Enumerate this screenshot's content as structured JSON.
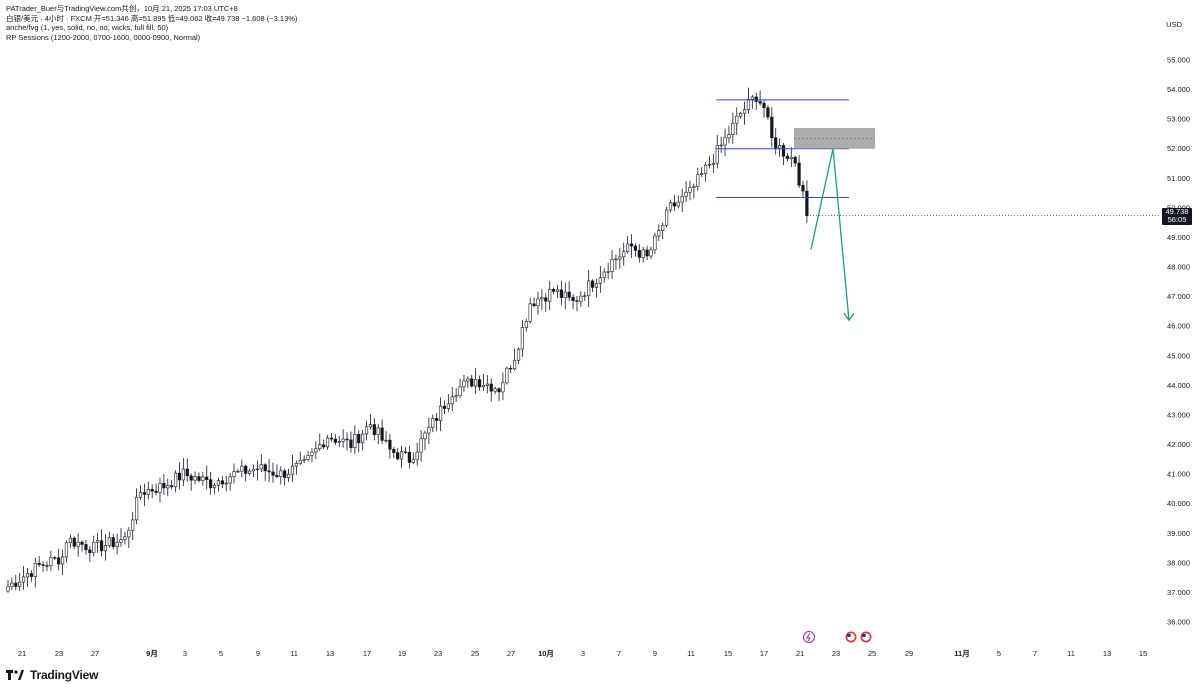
{
  "header": {
    "credit": "PATrader_Buer与TradingView.com共创，10月 21, 2025 17:03 UTC+8",
    "symbol_line": "白银/美元 · 4小时 · FXCM  开=51.346  高=51.895  低=49.062  收=49.738  −1.608 (−3.13%)",
    "indicator_1": "anche/fvg (1, yes, solid, no, no, wicks, full fill, 50)",
    "indicator_2": "RP Sessions (1200-2000, 0700-1600, 0000-0900, Normal)"
  },
  "currency": "USD",
  "last_price": {
    "value": "49.738",
    "countdown": "56:05"
  },
  "brand": "TradingView",
  "colors": {
    "candle": "#131722",
    "level_line": "#2a4fd6",
    "zone_fill": "#9e9e9e",
    "zone_midline": "#d2477d",
    "projection": "#22998f",
    "accent_green": "#26a65b"
  },
  "chart_data": {
    "type": "candlestick",
    "symbol": "白银/美元",
    "timeframe": "4小时",
    "y_ticks": [
      "55.000",
      "54.000",
      "53.000",
      "52.000",
      "51.000",
      "50.000",
      "49.000",
      "48.000",
      "47.000",
      "46.000",
      "45.000",
      "44.000",
      "43.000",
      "42.000",
      "41.000",
      "40.000",
      "39.000",
      "38.000",
      "37.000",
      "36.000"
    ],
    "ylim": [
      35.4,
      55.8
    ],
    "x_ticks": [
      "21",
      "23",
      "27",
      "9月",
      "3",
      "5",
      "9",
      "11",
      "13",
      "17",
      "19",
      "23",
      "25",
      "27",
      "10月",
      "3",
      "7",
      "9",
      "11",
      "15",
      "17",
      "21",
      "23",
      "25",
      "29",
      "11月",
      "5",
      "7",
      "11",
      "13",
      "15"
    ],
    "close_path": [
      [
        0,
        37.2
      ],
      [
        8,
        37.9
      ],
      [
        14,
        38.2
      ],
      [
        15,
        38.8
      ],
      [
        22,
        38.5
      ],
      [
        30,
        38.8
      ],
      [
        34,
        40.4
      ],
      [
        40,
        40.6
      ],
      [
        45,
        41.0
      ],
      [
        52,
        40.7
      ],
      [
        58,
        41.0
      ],
      [
        64,
        41.2
      ],
      [
        70,
        41.0
      ],
      [
        76,
        41.3
      ],
      [
        82,
        42.3
      ],
      [
        88,
        42.0
      ],
      [
        93,
        42.7
      ],
      [
        98,
        41.8
      ],
      [
        103,
        41.5
      ],
      [
        108,
        42.5
      ],
      [
        114,
        43.8
      ],
      [
        120,
        44.2
      ],
      [
        126,
        43.9
      ],
      [
        130,
        45.0
      ],
      [
        134,
        46.8
      ],
      [
        140,
        47.2
      ],
      [
        145,
        46.8
      ],
      [
        150,
        47.5
      ],
      [
        155,
        48.2
      ],
      [
        160,
        48.7
      ],
      [
        164,
        48.3
      ],
      [
        170,
        50.0
      ],
      [
        175,
        50.5
      ],
      [
        179,
        51.3
      ],
      [
        184,
        52.3
      ],
      [
        188,
        53.2
      ],
      [
        192,
        53.8
      ],
      [
        194,
        53.4
      ],
      [
        196,
        52.3
      ],
      [
        199,
        51.9
      ],
      [
        202,
        51.6
      ],
      [
        205,
        49.74
      ]
    ],
    "last_close": 49.738,
    "levels": [
      {
        "name": "upper",
        "y": 53.65
      },
      {
        "name": "middle",
        "y": 52.0
      },
      {
        "name": "lower",
        "y": 50.35
      }
    ],
    "fvg_zone": {
      "y_low": 52.0,
      "y_high": 52.7,
      "mid": 52.35
    },
    "projection": [
      [
        52.2
      ],
      [
        46.1
      ]
    ]
  }
}
